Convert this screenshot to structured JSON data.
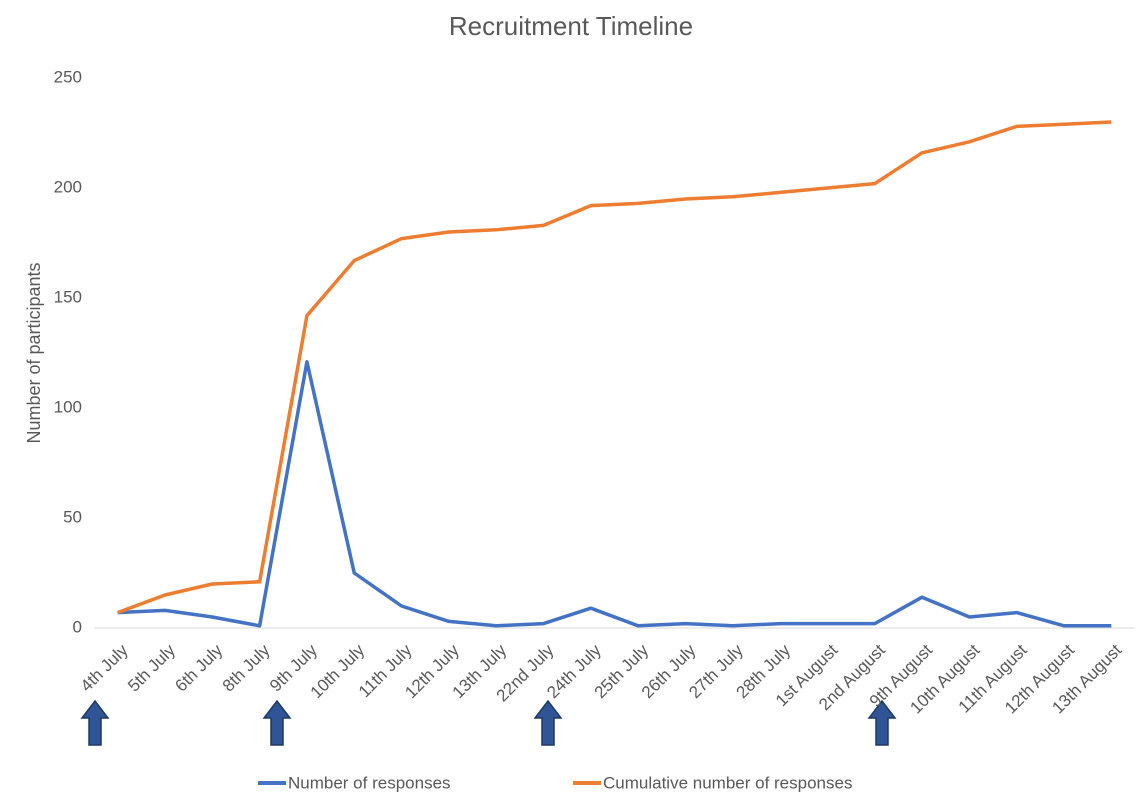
{
  "chart_data": {
    "type": "line",
    "title": "Recruitment Timeline",
    "y_label": "Number of participants",
    "categories": [
      "4th July",
      "5th July",
      "6th July",
      "8th July",
      "9th July",
      "10th July",
      "11th July",
      "12th July",
      "13th July",
      "22nd July",
      "24th July",
      "25th July",
      "26th July",
      "27th July",
      "28th July",
      "1st August",
      "2nd August",
      "9th August",
      "10th August",
      "11th August",
      "12th August",
      "13th August"
    ],
    "series": [
      {
        "name": "Number of responses",
        "color": "#4472c4",
        "values": [
          7,
          8,
          5,
          1,
          121,
          25,
          10,
          3,
          1,
          2,
          9,
          1,
          2,
          1,
          2,
          2,
          2,
          14,
          5,
          7,
          1,
          1
        ]
      },
      {
        "name": "Cumulative number of responses",
        "color": "#ed7d31",
        "values": [
          7,
          15,
          20,
          21,
          142,
          167,
          177,
          180,
          181,
          183,
          192,
          193,
          195,
          196,
          198,
          200,
          202,
          216,
          221,
          228,
          229,
          230
        ]
      }
    ],
    "ylim": [
      0,
      250
    ],
    "yticks": [
      0,
      50,
      100,
      150,
      200,
      250
    ],
    "grid": false,
    "legend": "bottom"
  }
}
